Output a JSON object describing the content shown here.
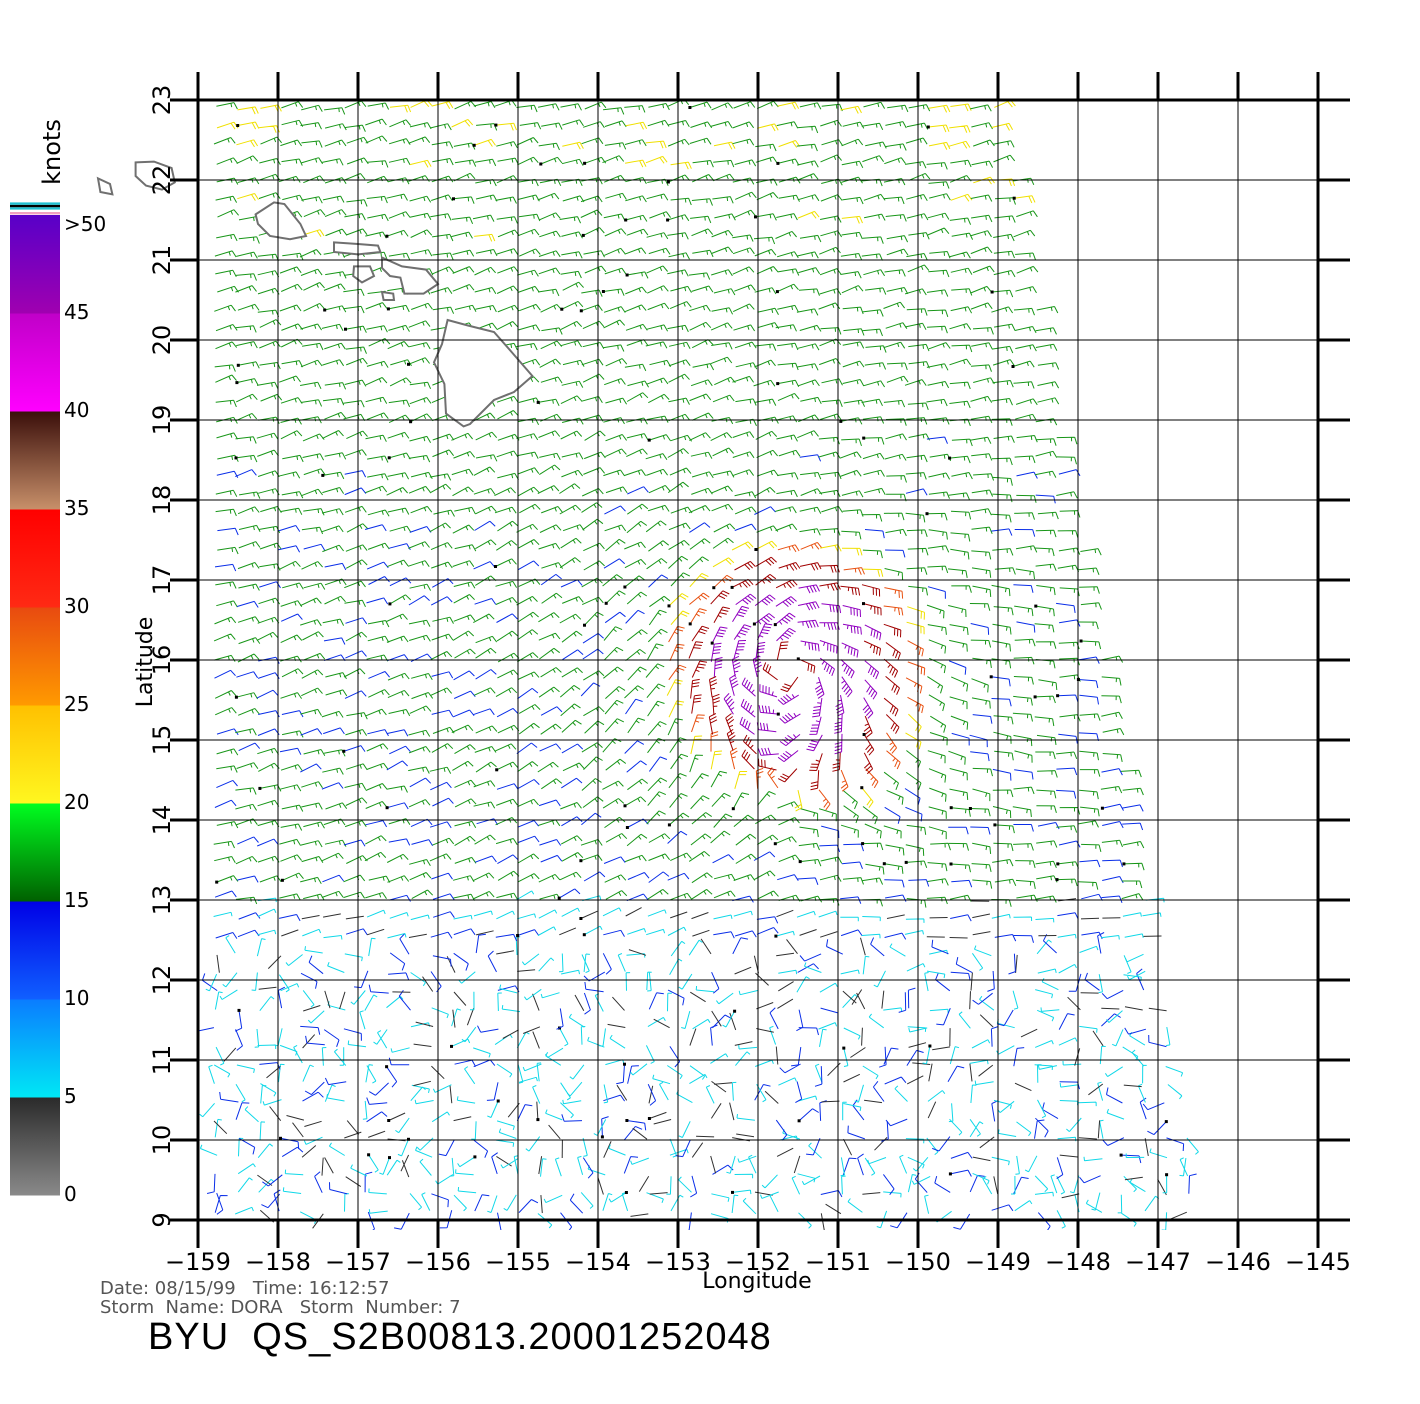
{
  "map": {
    "region": "Hawaiian Islands and Pacific south-east of Hawaii",
    "xaxis_label": "Longitude",
    "yaxis_label": "Latitude",
    "lon_ticks": [
      -159,
      -158,
      -157,
      -156,
      -155,
      -154,
      -153,
      -152,
      -151,
      -150,
      -149,
      -148,
      -147,
      -146,
      -145
    ],
    "lat_ticks": [
      9,
      10,
      11,
      12,
      13,
      14,
      15,
      16,
      17,
      18,
      19,
      20,
      21,
      22,
      23
    ],
    "lon_range": [
      -159,
      -145
    ],
    "lat_range": [
      9,
      23
    ],
    "land_outline_color": "#707070",
    "storm_center": {
      "lon": -151.6,
      "lat": 15.9
    }
  },
  "colorbar": {
    "unit_label": "knots",
    "top_label": ">50",
    "labels": [
      "0",
      "5",
      "10",
      "15",
      "20",
      "25",
      "30",
      "35",
      "40",
      "45"
    ],
    "bands": [
      {
        "from": 0,
        "to": 5,
        "colors": [
          "#8a8a8a",
          "#2a2a2a"
        ]
      },
      {
        "from": 5,
        "to": 10,
        "colors": [
          "#00e8f5",
          "#0a7cff"
        ]
      },
      {
        "from": 10,
        "to": 15,
        "colors": [
          "#1060ff",
          "#0000e6"
        ]
      },
      {
        "from": 15,
        "to": 20,
        "colors": [
          "#006000",
          "#00ff20"
        ]
      },
      {
        "from": 20,
        "to": 25,
        "colors": [
          "#fff720",
          "#ffc000"
        ]
      },
      {
        "from": 25,
        "to": 30,
        "colors": [
          "#ff9a00",
          "#e84a10"
        ]
      },
      {
        "from": 30,
        "to": 35,
        "colors": [
          "#ff2a14",
          "#ff0000"
        ]
      },
      {
        "from": 35,
        "to": 40,
        "colors": [
          "#c8906a",
          "#3a0e0a"
        ]
      },
      {
        "from": 40,
        "to": 45,
        "colors": [
          "#ff00ff",
          "#c000c8"
        ]
      },
      {
        "from": 45,
        "to": 50,
        "colors": [
          "#a000b0",
          "#5800c8"
        ]
      }
    ]
  },
  "wind_colors": {
    "calm": "#303030",
    "light": "#10d8e8",
    "moderate": "#0a2ee8",
    "fresh": "#189618",
    "strong": "#f0e000",
    "gale": "#e85010",
    "severe": "#a00000",
    "storm": "#9000c0"
  },
  "footer": {
    "date_line": "Date: 08/15/99   Time: 16:12:57",
    "storm_line": "Storm  Name: DORA   Storm  Number: 7",
    "file_id": "BYU  QS_S2B00813.20001252048"
  }
}
